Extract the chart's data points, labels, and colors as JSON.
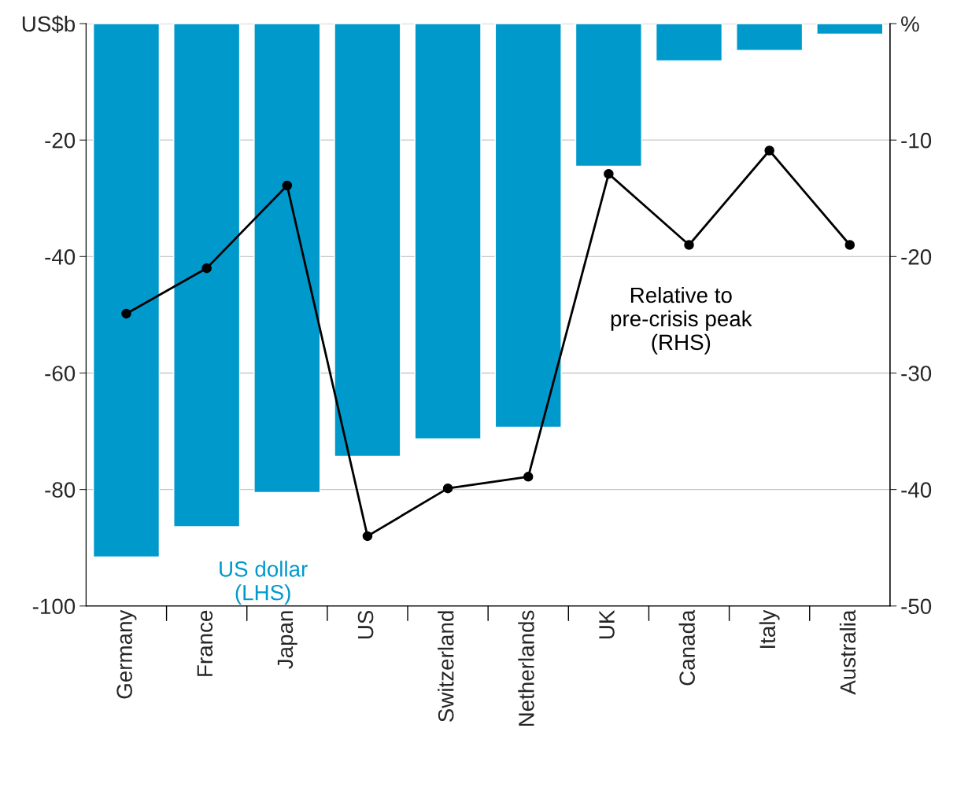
{
  "chart_data": {
    "type": "bar",
    "categories": [
      "Germany",
      "France",
      "Japan",
      "US",
      "Switzerland",
      "Netherlands",
      "UK",
      "Canada",
      "Italy",
      "Australia"
    ],
    "series": [
      {
        "name": "US dollar\n(LHS)",
        "color": "#0099cc",
        "values": [
          -91.6,
          -86.4,
          -80.5,
          -74.3,
          -71.3,
          -69.3,
          -24.5,
          -6.4,
          -4.6,
          -1.8
        ]
      },
      {
        "name": "Relative to\npre-crisis peak\n(RHS)",
        "type": "line",
        "axis": "y2",
        "color": "#000000",
        "marker": "circle",
        "values": [
          -24.9,
          -21.0,
          -13.9,
          -44.0,
          -39.9,
          -38.9,
          -12.9,
          -19.0,
          -10.9,
          -19.0
        ]
      }
    ],
    "ylim": [
      -100,
      0
    ],
    "yticks": [
      {
        "value": 0,
        "label": "US$b"
      },
      -20,
      -40,
      -60,
      -80,
      -100
    ],
    "y2lim": [
      -50,
      0
    ],
    "y2ticks": [
      {
        "value": 0,
        "label": "%"
      },
      -10,
      -20,
      -30,
      -40,
      -50
    ],
    "grid": "y",
    "legend": false
  }
}
